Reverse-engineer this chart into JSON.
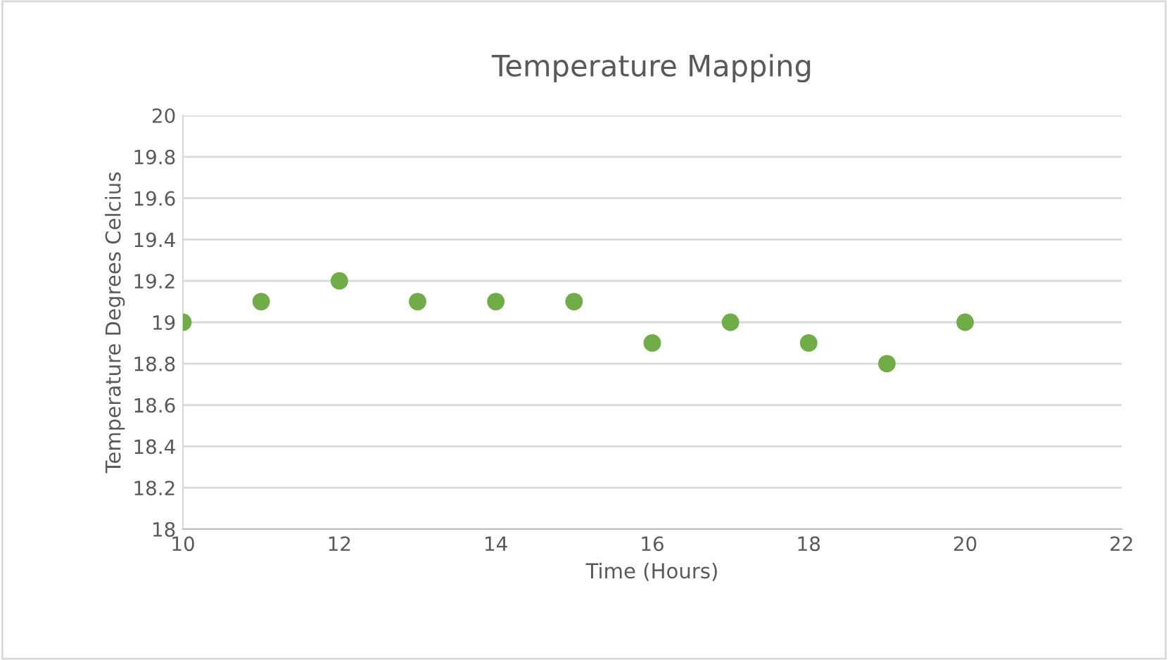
{
  "chart_data": {
    "type": "scatter",
    "title": "Temperature Mapping",
    "xlabel": "Time (Hours)",
    "ylabel": "Temperature Degrees Celcius",
    "x": [
      10,
      11,
      12,
      13,
      14,
      15,
      16,
      17,
      18,
      19,
      20
    ],
    "series": [
      {
        "color": "#70ad47",
        "values": [
          19.0,
          19.1,
          19.2,
          19.1,
          19.1,
          19.1,
          18.9,
          19.0,
          18.9,
          18.8,
          19.0
        ]
      }
    ],
    "xlim": [
      10,
      22
    ],
    "xticks": [
      10,
      12,
      14,
      16,
      18,
      20,
      22
    ],
    "ylim": [
      18,
      20
    ],
    "yticks": [
      18,
      {
        "value": 18.2,
        "label": "18.2"
      },
      {
        "value": 18.4,
        "label": "18.4"
      },
      {
        "value": 18.6,
        "label": "18.6"
      },
      {
        "value": 18.8,
        "label": "18.8"
      },
      19,
      {
        "value": 19.2,
        "label": "19.2"
      },
      {
        "value": 19.4,
        "label": "19.4"
      },
      {
        "value": 19.6,
        "label": "19.6"
      },
      {
        "value": 19.8,
        "label": "19.8"
      },
      20
    ],
    "grid": "y",
    "marker": "circle",
    "legend": false
  }
}
